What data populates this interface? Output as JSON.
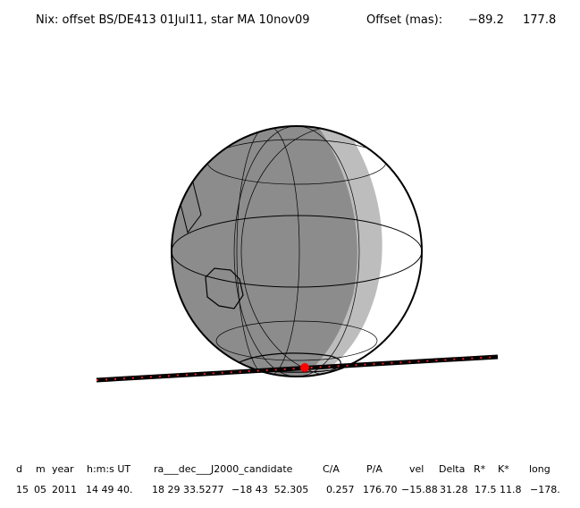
{
  "header": {
    "title": "Nix: offset BS/DE413 01Jul11, star MA 10nov09",
    "offset_label": "Offset (mas):",
    "offset_values": [
      "−89.2",
      "177.8"
    ]
  },
  "table": {
    "columns": [
      "d",
      "m",
      "year",
      "h:m:s UT",
      "ra___dec___J2000_candidate",
      "C/A",
      "P/A",
      "vel",
      "Delta",
      "R*",
      "K*",
      "long"
    ],
    "rows": [
      [
        "15",
        "05",
        "2011",
        "14 49 40.",
        "18 29 33.5277",
        "−18 43  52.305",
        "0.257",
        "176.70",
        "−15.88",
        "31.28",
        "17.5",
        "11.8",
        "−178."
      ]
    ]
  }
}
